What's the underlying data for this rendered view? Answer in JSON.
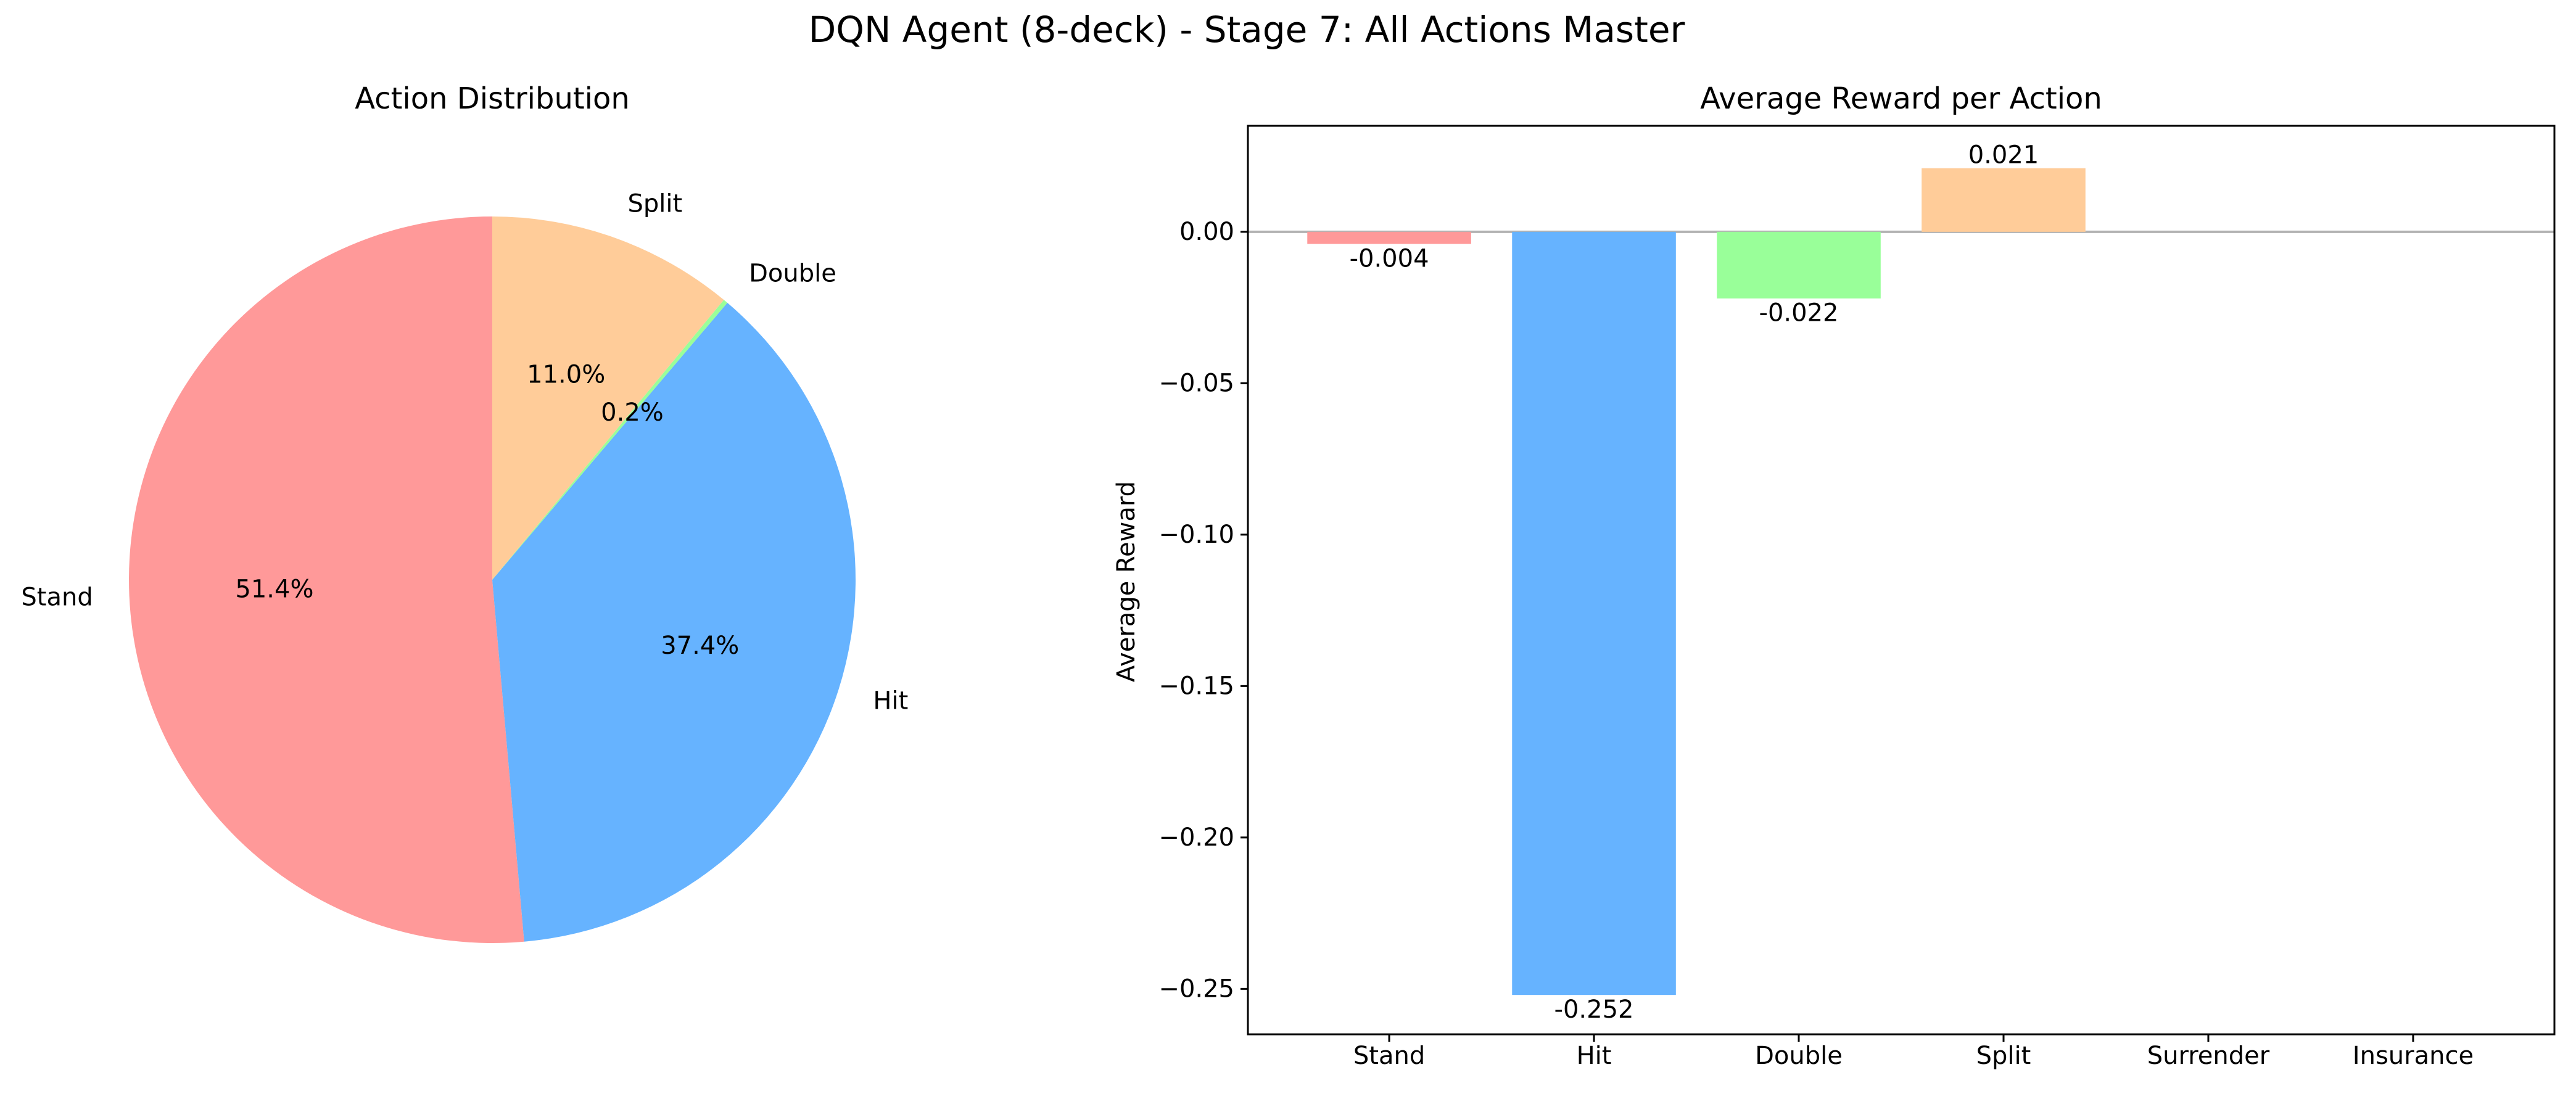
{
  "figure": {
    "suptitle": "DQN Agent (8-deck) - Stage 7: All Actions Master"
  },
  "chart_data": [
    {
      "type": "pie",
      "title": "Action Distribution",
      "start_angle_deg": 90,
      "direction": "counterclockwise",
      "slices": [
        {
          "label": "Stand",
          "value": 51.4,
          "pct_label": "51.4%",
          "color": "#ff9999"
        },
        {
          "label": "Hit",
          "value": 37.4,
          "pct_label": "37.4%",
          "color": "#66b3ff"
        },
        {
          "label": "Double",
          "value": 0.2,
          "pct_label": "0.2%",
          "color": "#99ff99"
        },
        {
          "label": "Split",
          "value": 11.0,
          "pct_label": "11.0%",
          "color": "#ffcc99"
        }
      ]
    },
    {
      "type": "bar",
      "title": "Average Reward per Action",
      "xlabel": "",
      "ylabel": "Average Reward",
      "ylim": [
        -0.265,
        0.035
      ],
      "yticks": [
        0.0,
        -0.05,
        -0.1,
        -0.15,
        -0.2,
        -0.25
      ],
      "ytick_labels": [
        "0.00",
        "−0.05",
        "−0.10",
        "−0.15",
        "−0.20",
        "−0.25"
      ],
      "categories": [
        "Stand",
        "Hit",
        "Double",
        "Split",
        "Surrender",
        "Insurance"
      ],
      "values": [
        -0.004,
        -0.252,
        -0.022,
        0.021,
        null,
        null
      ],
      "value_labels": [
        "-0.004",
        "-0.252",
        "-0.022",
        "0.021",
        null,
        null
      ],
      "colors": [
        "#ff9999",
        "#66b3ff",
        "#99ff99",
        "#ffcc99",
        "#ff99cc",
        "#c2c2f0"
      ],
      "zero_line": true,
      "grid": false
    }
  ]
}
